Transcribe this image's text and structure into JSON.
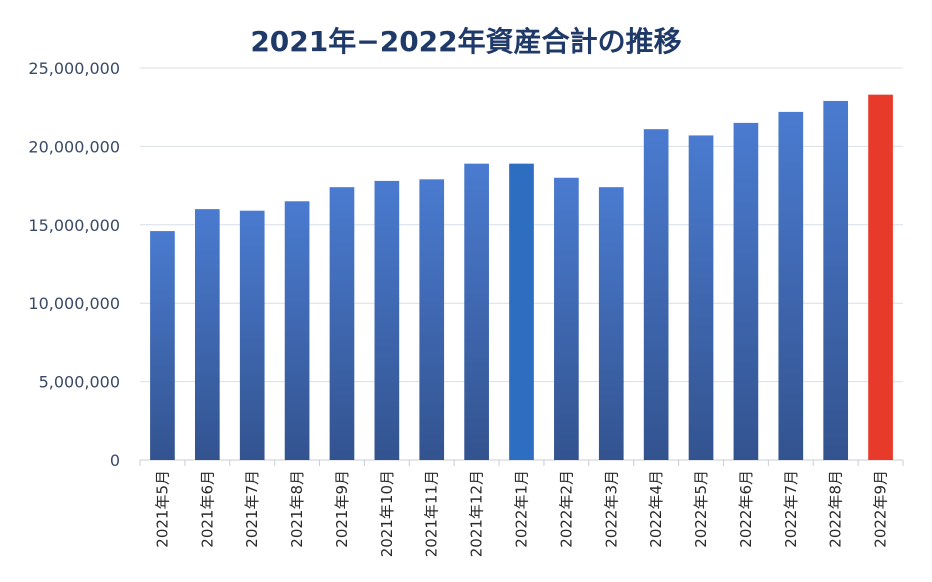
{
  "chart_data": {
    "type": "bar",
    "title": "2021年−2022年資産合計の推移",
    "categories": [
      "2021年5月",
      "2021年6月",
      "2021年7月",
      "2021年8月",
      "2021年9月",
      "2021年10月",
      "2021年11月",
      "2021年12月",
      "2022年1月",
      "2022年2月",
      "2022年3月",
      "2022年4月",
      "2022年5月",
      "2022年6月",
      "2022年7月",
      "2022年8月",
      "2022年9月"
    ],
    "values": [
      14600000,
      16000000,
      15900000,
      16500000,
      17400000,
      17800000,
      17900000,
      18900000,
      18900000,
      18000000,
      17400000,
      21100000,
      20700000,
      21500000,
      22200000,
      22900000,
      23300000
    ],
    "ylim": [
      0,
      25000000
    ],
    "yticks": [
      0,
      5000000,
      10000000,
      15000000,
      20000000,
      25000000
    ],
    "ytick_labels": [
      "0",
      "5,000,000",
      "10,000,000",
      "15,000,000",
      "20,000,000",
      "25,000,000"
    ],
    "grid": true,
    "colors": {
      "bar_top": "#4a7bd0",
      "bar_bottom": "#33538f",
      "highlight_jan": "#2e6ec0",
      "highlight_last": "#e83a2a",
      "grid": "#d9dee8",
      "axis": "#c8ccd6"
    }
  }
}
